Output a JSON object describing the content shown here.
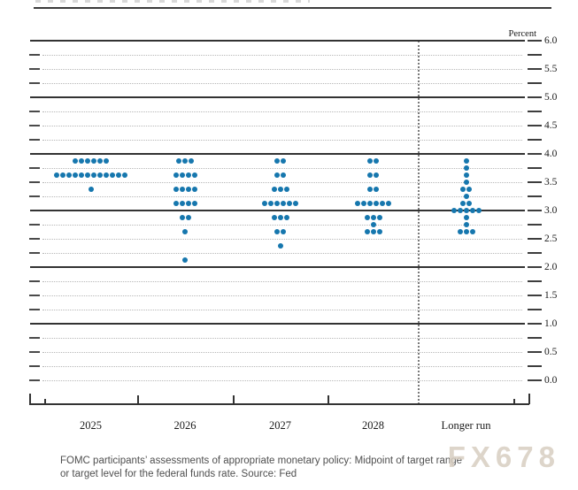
{
  "chart_data": {
    "type": "scatter",
    "subtype": "fomc-dot-plot",
    "title": "",
    "xlabel": "",
    "ylabel": "Percent",
    "ylim": [
      0.0,
      6.0
    ],
    "y_label_step": 0.5,
    "y_grid_step": 0.25,
    "y_solid_lines": [
      1.0,
      2.0,
      3.0,
      4.0,
      5.0,
      6.0
    ],
    "y_tick_labels": [
      "6.0",
      "5.5",
      "5.0",
      "4.5",
      "4.0",
      "3.5",
      "3.0",
      "2.5",
      "2.0",
      "1.5",
      "1.0",
      "0.5",
      "0.0"
    ],
    "grid": "on",
    "legend": "none",
    "dot_color": "#1677ae",
    "categories": [
      "2025",
      "2026",
      "2027",
      "2028",
      "Longer run"
    ],
    "separator_before_category": "Longer run",
    "dots": [
      {
        "category": "2025",
        "counts": [
          [
            3.875,
            6
          ],
          [
            3.625,
            12
          ],
          [
            3.375,
            1
          ]
        ]
      },
      {
        "category": "2026",
        "counts": [
          [
            3.875,
            3
          ],
          [
            3.625,
            4
          ],
          [
            3.375,
            4
          ],
          [
            3.125,
            4
          ],
          [
            2.875,
            2
          ],
          [
            2.625,
            1
          ],
          [
            2.125,
            1
          ]
        ]
      },
      {
        "category": "2027",
        "counts": [
          [
            3.875,
            2
          ],
          [
            3.625,
            2
          ],
          [
            3.375,
            3
          ],
          [
            3.125,
            6
          ],
          [
            2.875,
            3
          ],
          [
            2.625,
            2
          ],
          [
            2.375,
            1
          ]
        ]
      },
      {
        "category": "2028",
        "counts": [
          [
            3.875,
            2
          ],
          [
            3.625,
            2
          ],
          [
            3.375,
            2
          ],
          [
            3.125,
            6
          ],
          [
            2.875,
            3
          ],
          [
            2.75,
            1
          ],
          [
            2.625,
            3
          ]
        ]
      },
      {
        "category": "Longer run",
        "counts": [
          [
            3.875,
            1
          ],
          [
            3.75,
            1
          ],
          [
            3.625,
            1
          ],
          [
            3.5,
            1
          ],
          [
            3.375,
            2
          ],
          [
            3.25,
            1
          ],
          [
            3.125,
            2
          ],
          [
            3.0,
            5
          ],
          [
            2.875,
            1
          ],
          [
            2.75,
            1
          ],
          [
            2.625,
            3
          ]
        ]
      }
    ]
  },
  "caption": {
    "lines": [
      "FOMC participants’ assessments of appropriate monetary policy: Midpoint of target range",
      "or target level for the federal funds rate. Source: Fed"
    ]
  },
  "watermark": {
    "text": "FX678",
    "color": "#d8cec1"
  }
}
